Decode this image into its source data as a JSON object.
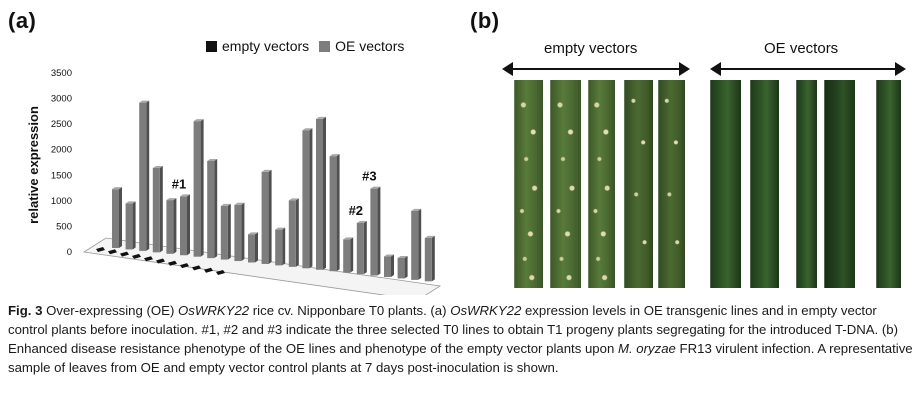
{
  "panel_labels": {
    "a": "(a)",
    "b": "(b)"
  },
  "legend": {
    "empty": "empty vectors",
    "oe": "OE vectors"
  },
  "colors": {
    "empty_vectors": "#111111",
    "oe_vectors": "#7d7d7d",
    "oe_bar_side": "#4f4f4f",
    "oe_bar_top": "#a8a8a8"
  },
  "chart_data": {
    "type": "bar",
    "ylabel": "relative expression",
    "yticks": [
      "0",
      "500",
      "1000",
      "1500",
      "2000",
      "2500",
      "3000",
      "3500"
    ],
    "ylim": [
      0,
      3500
    ],
    "series": [
      {
        "name": "empty vectors",
        "values": [
          20,
          20,
          20,
          20,
          20,
          20,
          20,
          20,
          20,
          20,
          20
        ]
      },
      {
        "name": "OE vectors",
        "values": [
          1150,
          900,
          2900,
          1650,
          1050,
          1150,
          2650,
          1900,
          1050,
          1100,
          550,
          1800,
          700,
          1300,
          2700,
          2950,
          2250,
          650,
          1000,
          1700,
          400,
          400,
          1350,
          850
        ]
      }
    ],
    "annotations": [
      {
        "label": "#1",
        "bar_index": 5
      },
      {
        "label": "#2",
        "bar_index": 18
      },
      {
        "label": "#3",
        "bar_index": 19
      }
    ]
  },
  "panel_b": {
    "empty_label": "empty vectors",
    "oe_label": "OE vectors",
    "empty_leaves": 5,
    "oe_leaves": 5
  },
  "caption": {
    "fig": "Fig. 3",
    "p1": "Over-expressing (OE) ",
    "gene1": "OsWRKY22",
    "p2": " rice cv. Nipponbare T0 plants. (a) ",
    "gene2": "OsWRKY22",
    "p3": " expression levels in OE transgenic lines and in empty vector control plants before inoculation. #1, #2 and #3 indicate the three selected T0 lines to obtain T1 progeny plants segregating for the introduced T-DNA. (b) Enhanced disease resistance phenotype of the OE lines and phenotype of the empty vector plants upon ",
    "pathogen": "M. oryzae",
    "p4": " FR13 virulent infection. A representative sample of leaves from OE and empty vector control plants at 7 days post-inoculation is shown."
  }
}
